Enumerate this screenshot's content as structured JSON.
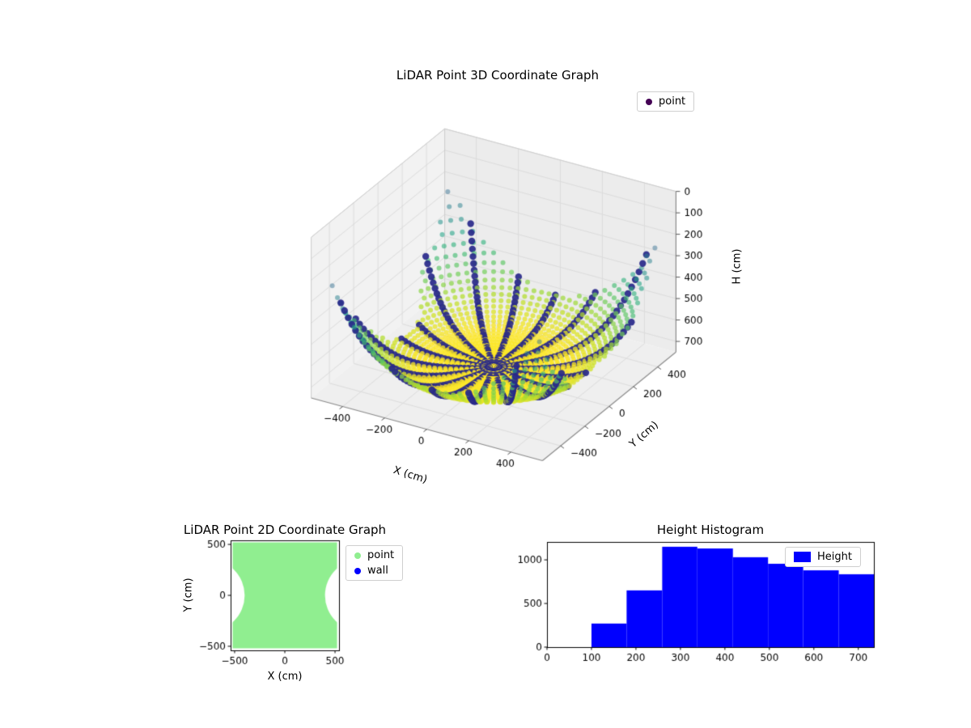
{
  "figure": {
    "background": "#ffffff"
  },
  "chart_data": [
    {
      "id": "lidar-3d",
      "type": "scatter",
      "projection": "3d",
      "title": "LiDAR Point 3D Coordinate Graph",
      "xlabel": "X (cm)",
      "ylabel": "Y (cm)",
      "zlabel": "H (cm)",
      "xticks": [
        -400,
        -200,
        0,
        200,
        400
      ],
      "yticks": [
        -400,
        -200,
        0,
        200,
        400
      ],
      "zticks": [
        0,
        100,
        200,
        300,
        400,
        500,
        600,
        700
      ],
      "xlim": [
        -550,
        550
      ],
      "ylim": [
        -550,
        550
      ],
      "zlim": [
        0,
        750
      ],
      "z_axis_inverted": true,
      "view": {
        "elev": 28,
        "azim": -60
      },
      "colormap": "viridis",
      "grid": true,
      "pane_colors": {
        "x": "#f2f2f2",
        "y": "#ececec",
        "floor": "#efefef"
      },
      "grid_color": "#dcdcdc",
      "legend": [
        {
          "label": "point",
          "color": "#440154"
        }
      ],
      "point_cloud": {
        "model": "bowl_of_lidar_points_inside_pinched_square_room",
        "room_half_size": 500,
        "notch_center": 760,
        "notch_radius": 360,
        "bowl_center_height": 720,
        "bowl_falloff_radius": 760,
        "bowl_exponent": 4,
        "height_clip": 750,
        "rings": 32,
        "points_per_ring": 90,
        "scan_lines": 18,
        "scan_line_color": "#28288a",
        "point_color_by": "H"
      }
    },
    {
      "id": "lidar-2d",
      "type": "scatter",
      "title": "LiDAR Point 2D Coordinate Graph",
      "xlabel": "X (cm)",
      "ylabel": "Y (cm)",
      "xticks": [
        -500,
        0,
        500
      ],
      "yticks": [
        -500,
        0,
        500
      ],
      "xlim": [
        -540,
        540
      ],
      "ylim": [
        -540,
        540
      ],
      "legend": [
        {
          "label": "point",
          "color": "#90ee90"
        },
        {
          "label": "wall",
          "color": "#0000ff"
        }
      ],
      "region": {
        "shape": "square_with_circular_side_notches",
        "half_size": 520,
        "notch_center_x": 760,
        "notch_radius": 360,
        "fill_color": "#90ee90"
      }
    },
    {
      "id": "height-histogram",
      "type": "bar",
      "title": "Height Histogram",
      "legend": [
        {
          "label": "Height",
          "color": "#0000ff"
        }
      ],
      "bar_color": "#0000ff",
      "bin_edges": [
        100,
        179,
        259,
        338,
        418,
        497,
        576,
        656,
        735
      ],
      "counts": [
        270,
        650,
        1150,
        1130,
        1030,
        955,
        880,
        835
      ],
      "xticks": [
        0,
        100,
        200,
        300,
        400,
        500,
        600,
        700
      ],
      "yticks": [
        0,
        500,
        1000
      ],
      "xlim": [
        0,
        735
      ],
      "ylim": [
        0,
        1205
      ]
    }
  ]
}
